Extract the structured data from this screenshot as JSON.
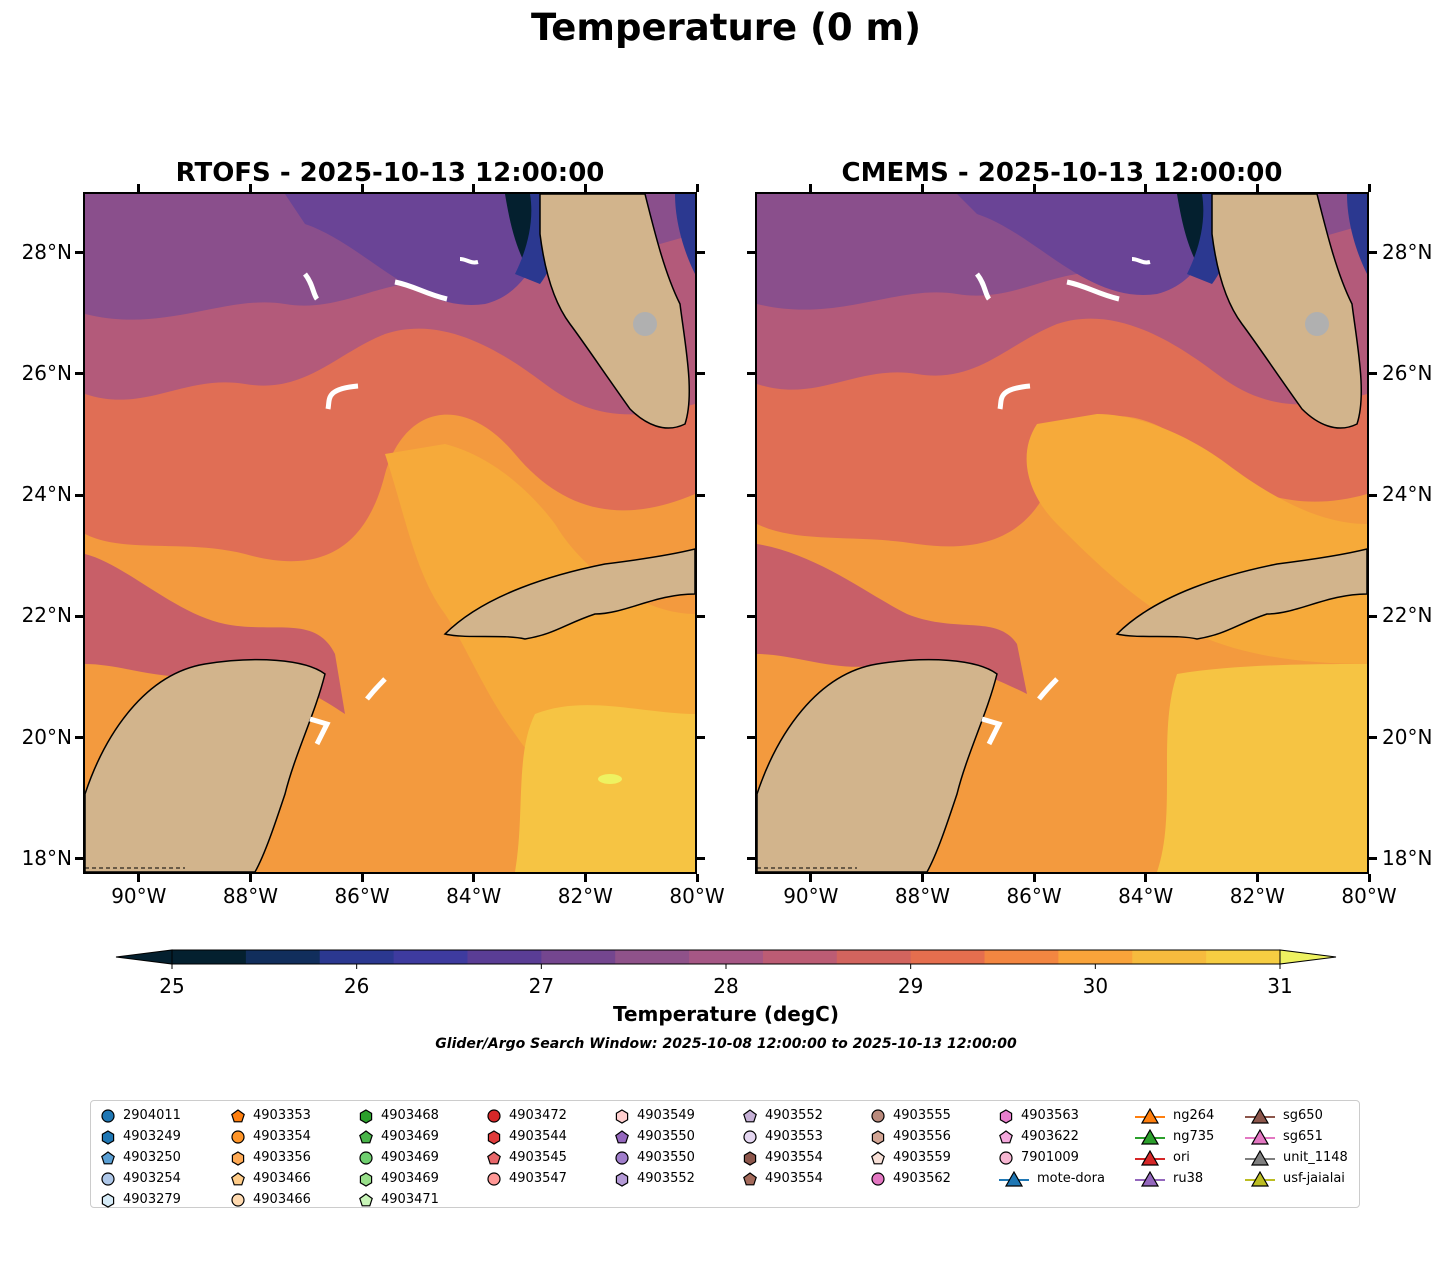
{
  "title": "Temperature (0 m)",
  "panels": [
    {
      "title": "RTOFS - 2025-10-13 12:00:00"
    },
    {
      "title": "CMEMS - 2025-10-13 12:00:00"
    }
  ],
  "axes": {
    "lat_labels": [
      "28°N",
      "26°N",
      "24°N",
      "22°N",
      "20°N",
      "18°N"
    ],
    "lat_values": [
      28,
      26,
      24,
      22,
      20,
      18
    ],
    "lon_labels": [
      "90°W",
      "88°W",
      "86°W",
      "84°W",
      "82°W",
      "80°W"
    ],
    "lon_values": [
      -90,
      -88,
      -86,
      -84,
      -82,
      -80
    ],
    "lon_range": [
      -91,
      -80
    ],
    "lat_range": [
      17.75,
      29
    ]
  },
  "colorbar": {
    "title": "Temperature (degC)",
    "tick_labels": [
      "25",
      "26",
      "27",
      "28",
      "29",
      "30",
      "31"
    ],
    "tick_values": [
      25,
      26,
      27,
      28,
      29,
      30,
      31
    ],
    "range": [
      25,
      31
    ],
    "colors": [
      "#04202f",
      "#112e5c",
      "#2b3890",
      "#3e3b9f",
      "#5a3d95",
      "#74468f",
      "#8f528a",
      "#a65785",
      "#bc5c74",
      "#d2645e",
      "#e56e4e",
      "#f38641",
      "#f9a33a",
      "#f6bb3e",
      "#f6cd42"
    ],
    "over_color": "#eef261",
    "under_color": "#04202f"
  },
  "search_window": "Glider/Argo Search Window: 2025-10-08 12:00:00 to 2025-10-13 12:00:00",
  "colors": {
    "land": "#d2b48c",
    "coast_fill": "#8fb4d8",
    "track": "#ffffff"
  },
  "legend": [
    [
      {
        "label": "2904011",
        "marker": "circle",
        "color": "#1f77b4"
      },
      {
        "label": "4903249",
        "marker": "hexagon",
        "color": "#1f77b4"
      },
      {
        "label": "4903250",
        "marker": "pentagon",
        "color": "#5a9fd4"
      },
      {
        "label": "4903254",
        "marker": "circle",
        "color": "#aec7e8"
      },
      {
        "label": "4903279",
        "marker": "hexagon",
        "color": "#d6ebf7"
      }
    ],
    [
      {
        "label": "4903353",
        "marker": "pentagon",
        "color": "#ff7f0e"
      },
      {
        "label": "4903354",
        "marker": "circle",
        "color": "#ff9528"
      },
      {
        "label": "4903356",
        "marker": "hexagon",
        "color": "#ffaa55"
      },
      {
        "label": "4903466",
        "marker": "pentagon",
        "color": "#ffcc88"
      },
      {
        "label": "4903466",
        "marker": "circle",
        "color": "#ffdab0"
      }
    ],
    [
      {
        "label": "4903468",
        "marker": "hexagon",
        "color": "#2ca02c"
      },
      {
        "label": "4903469",
        "marker": "pentagon",
        "color": "#49b449"
      },
      {
        "label": "4903469",
        "marker": "circle",
        "color": "#6fcf6f"
      },
      {
        "label": "4903469",
        "marker": "hexagon",
        "color": "#98df8a"
      },
      {
        "label": "4903471",
        "marker": "pentagon",
        "color": "#c8f5b8"
      }
    ],
    [
      {
        "label": "4903472",
        "marker": "circle",
        "color": "#d62728"
      },
      {
        "label": "4903544",
        "marker": "hexagon",
        "color": "#df3b3b"
      },
      {
        "label": "4903545",
        "marker": "pentagon",
        "color": "#e8676a"
      },
      {
        "label": "4903547",
        "marker": "circle",
        "color": "#ff9896"
      }
    ],
    [
      {
        "label": "4903549",
        "marker": "hexagon",
        "color": "#ffcfcf"
      },
      {
        "label": "4903550",
        "marker": "pentagon",
        "color": "#9467bd"
      },
      {
        "label": "4903550",
        "marker": "circle",
        "color": "#a07ecb"
      },
      {
        "label": "4903552",
        "marker": "hexagon",
        "color": "#b49ad6"
      }
    ],
    [
      {
        "label": "4903552",
        "marker": "pentagon",
        "color": "#c5b0d5"
      },
      {
        "label": "4903553",
        "marker": "circle",
        "color": "#e4d6f0"
      },
      {
        "label": "4903554",
        "marker": "hexagon",
        "color": "#8c564b"
      },
      {
        "label": "4903554",
        "marker": "pentagon",
        "color": "#a46a5b"
      }
    ],
    [
      {
        "label": "4903555",
        "marker": "circle",
        "color": "#b98a7c"
      },
      {
        "label": "4903556",
        "marker": "hexagon",
        "color": "#d3a594"
      },
      {
        "label": "4903559",
        "marker": "pentagon",
        "color": "#f7dfd6"
      },
      {
        "label": "4903562",
        "marker": "circle",
        "color": "#e377c2"
      }
    ],
    [
      {
        "label": "4903563",
        "marker": "hexagon",
        "color": "#e87fcc"
      },
      {
        "label": "4903622",
        "marker": "pentagon",
        "color": "#f4a8dc"
      },
      {
        "label": "7901009",
        "marker": "circle",
        "color": "#f7b6d2"
      },
      {
        "label": "mote-dora",
        "marker": "triangle",
        "color": "#1f77b4"
      }
    ],
    [
      {
        "label": "ng264",
        "marker": "triangle",
        "color": "#ff7f0e"
      },
      {
        "label": "ng735",
        "marker": "triangle",
        "color": "#2ca02c"
      },
      {
        "label": "ori",
        "marker": "triangle",
        "color": "#d62728"
      },
      {
        "label": "ru38",
        "marker": "triangle",
        "color": "#9467bd"
      }
    ],
    [
      {
        "label": "sg650",
        "marker": "triangle",
        "color": "#8c564b"
      },
      {
        "label": "sg651",
        "marker": "triangle",
        "color": "#e377c2"
      },
      {
        "label": "unit_1148",
        "marker": "triangle",
        "color": "#7f7f7f"
      },
      {
        "label": "usf-jaialai",
        "marker": "triangle",
        "color": "#bcbd22"
      }
    ]
  ]
}
